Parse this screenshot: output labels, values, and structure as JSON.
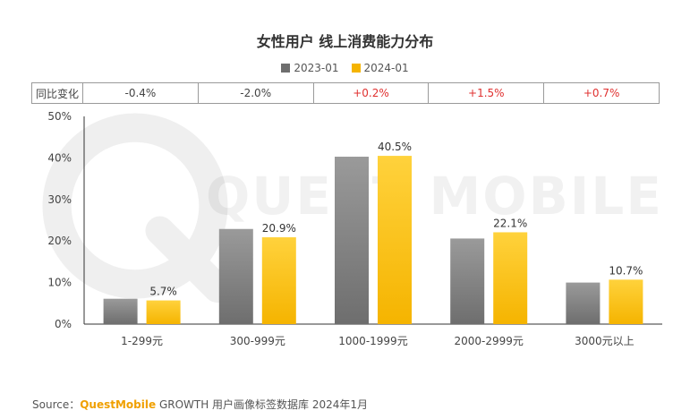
{
  "title": "女性用户 线上消费能力分布",
  "yoy": {
    "header": "同比变化",
    "values": [
      "-0.4%",
      "-2.0%",
      "+0.2%",
      "+1.5%",
      "+0.7%"
    ],
    "positive_color": "#e0302f",
    "neutral_color": "#444444"
  },
  "watermark": {
    "text": "QUEST MOBILE"
  },
  "chart_data": {
    "type": "bar",
    "title": "女性用户 线上消费能力分布",
    "categories": [
      "1-299元",
      "300-999元",
      "1000-1999元",
      "2000-2999元",
      "3000元以上"
    ],
    "series": [
      {
        "name": "2023-01",
        "values": [
          6.1,
          22.9,
          40.3,
          20.6,
          10.0
        ],
        "color_top": "#9a9a9a",
        "color_bottom": "#6e6e6e",
        "labels": [
          "",
          "",
          "",
          "",
          ""
        ]
      },
      {
        "name": "2024-01",
        "values": [
          5.7,
          20.9,
          40.5,
          22.1,
          10.7
        ],
        "color_top": "#ffd23c",
        "color_bottom": "#f5b400",
        "labels": [
          "5.7%",
          "20.9%",
          "40.5%",
          "22.1%",
          "10.7%"
        ]
      }
    ],
    "yticks": [
      "0%",
      "10%",
      "20%",
      "30%",
      "40%",
      "50%"
    ],
    "ylim": [
      0,
      50
    ],
    "xlabel": "",
    "ylabel": ""
  },
  "source": {
    "prefix": "Source：",
    "brand": "QuestMobile",
    "rest": " GROWTH 用户画像标签数据库 2024年1月"
  }
}
